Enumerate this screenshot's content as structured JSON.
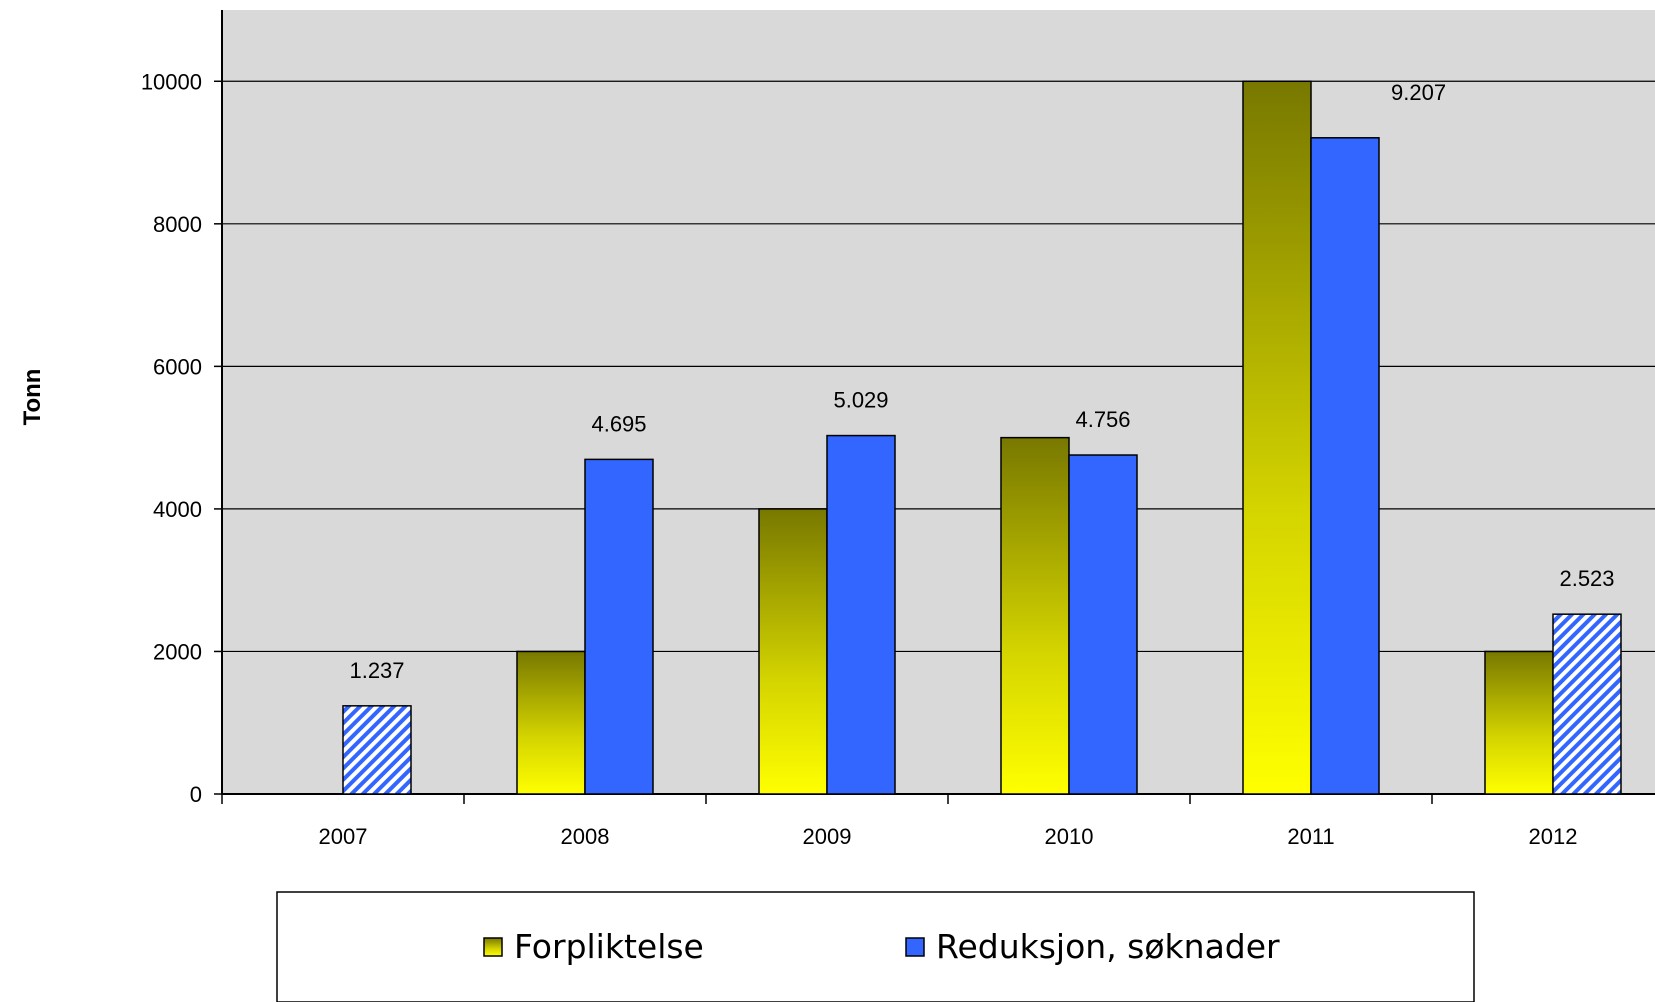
{
  "chart_data": {
    "type": "bar",
    "categories": [
      "2007",
      "2008",
      "2009",
      "2010",
      "2011",
      "2012"
    ],
    "series": [
      {
        "name": "Forpliktelse",
        "values": [
          null,
          2000,
          4000,
          5000,
          10000,
          2000
        ],
        "color_top": "#787800",
        "color_bottom": "#ffff00"
      },
      {
        "name": "Reduksjon, søknader",
        "values": [
          1237,
          4695,
          5029,
          4756,
          9207,
          2523
        ],
        "data_labels": [
          "1.237",
          "4.695",
          "5.029",
          "4.756",
          "9.207",
          "2.523"
        ],
        "color": "#3366ff",
        "hatched": [
          true,
          false,
          false,
          false,
          false,
          true
        ]
      }
    ],
    "ylabel": "Tonn",
    "ylim": [
      0,
      11000
    ],
    "yticks": [
      0,
      2000,
      4000,
      6000,
      8000,
      10000
    ],
    "ytick_labels": [
      "0",
      "2000",
      "4000",
      "6000",
      "8000",
      "10000"
    ],
    "grid": true,
    "legend_position": "bottom",
    "plot_background": "#d9d9d9"
  }
}
